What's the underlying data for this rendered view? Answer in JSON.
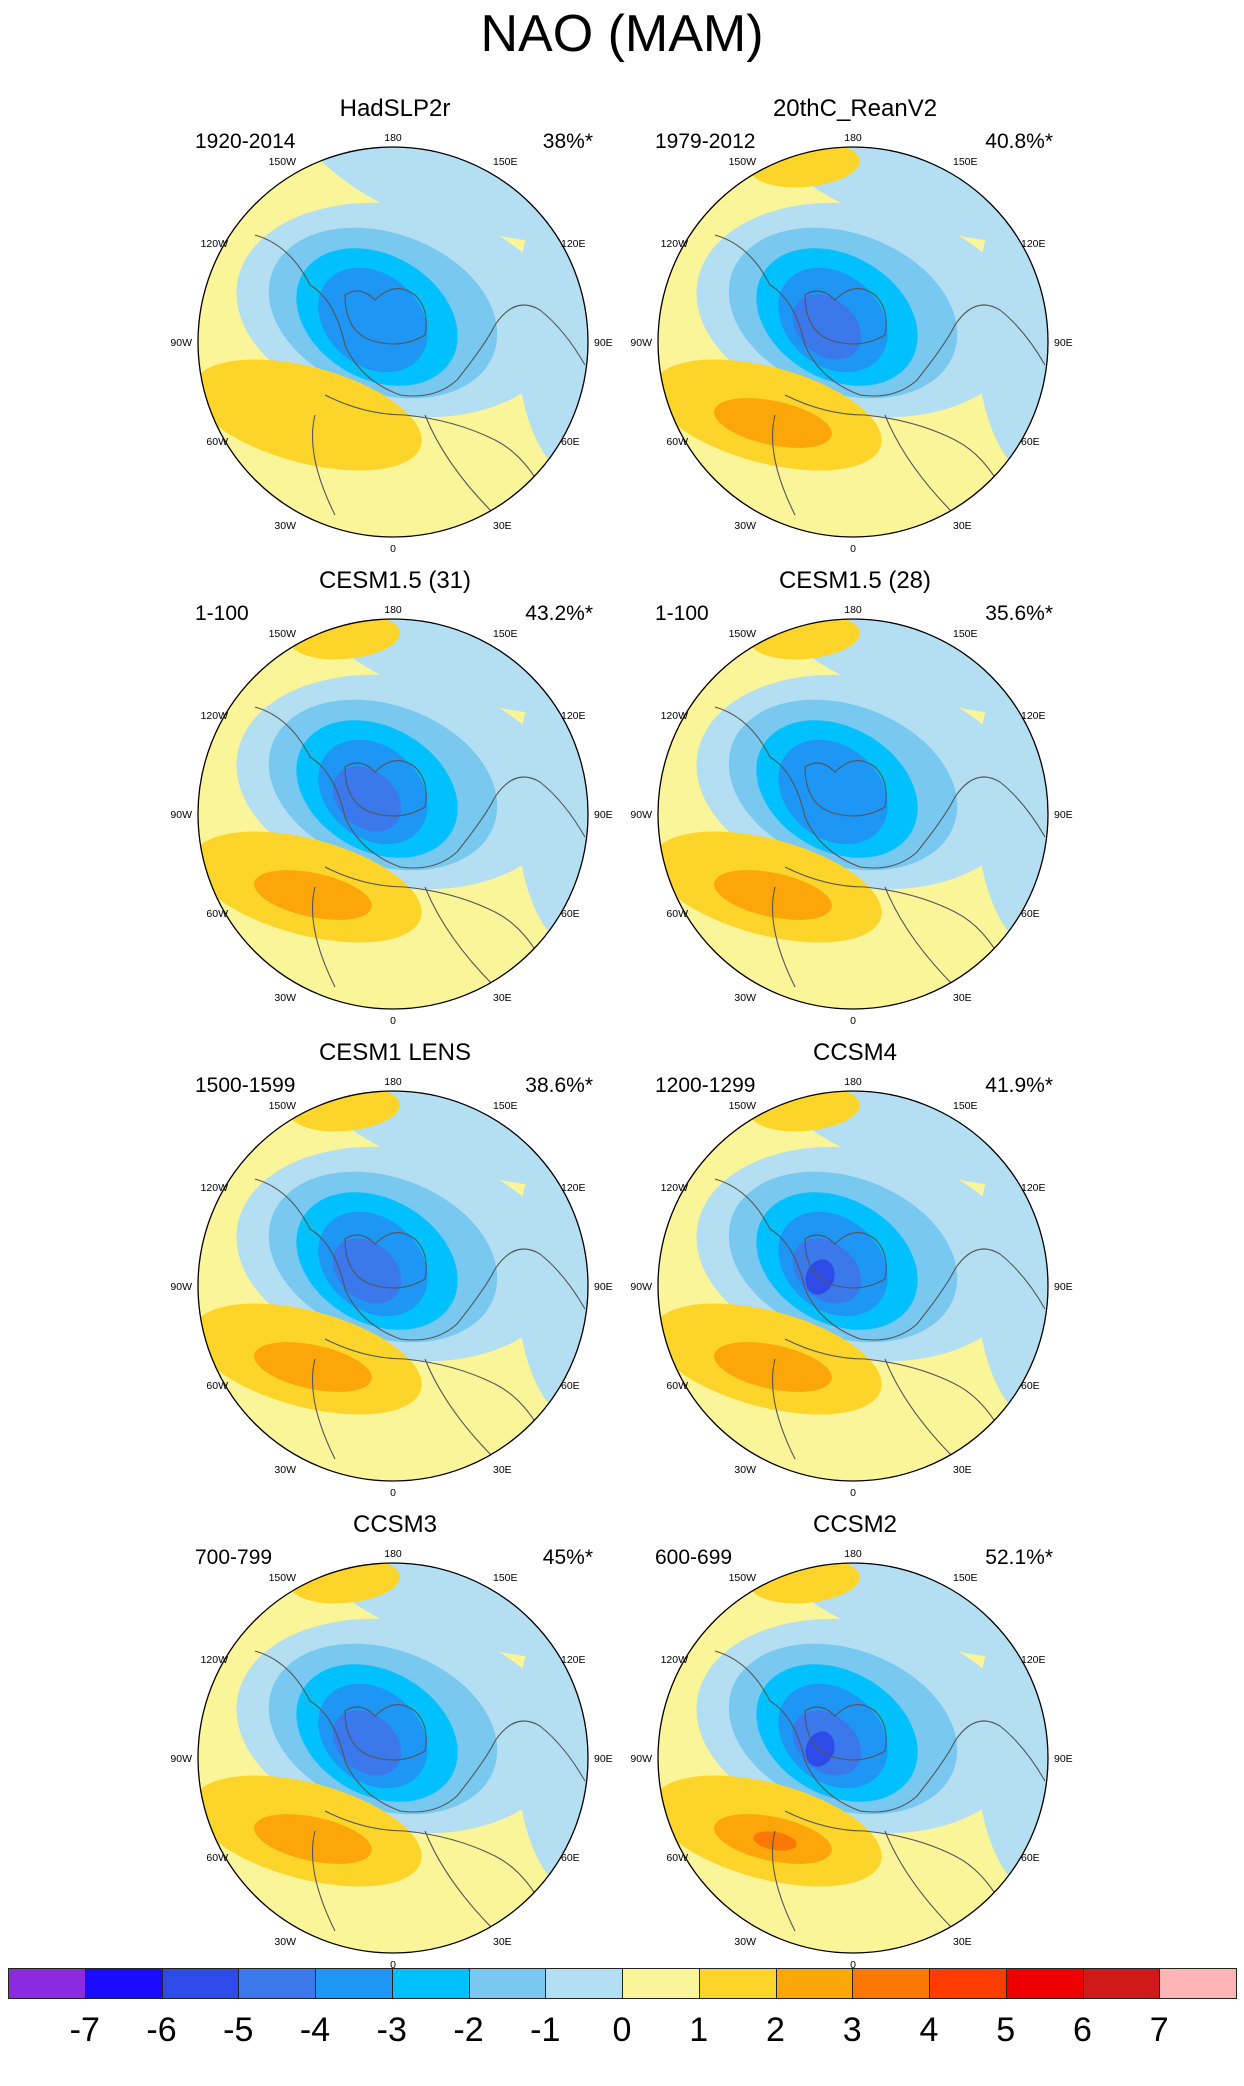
{
  "title": "NAO (MAM)",
  "lon_labels": {
    "top": "180",
    "bottom": "0",
    "left": "90W",
    "right": "90E",
    "ul1": "150W",
    "ul2": "120W",
    "ur1": "150E",
    "ur2": "120E",
    "ll1": "60W",
    "ll2": "30W",
    "lr1": "60E",
    "lr2": "30E"
  },
  "panels": [
    {
      "name": "HadSLP2r",
      "period": "1920-2014",
      "variance": "38%*",
      "max_positive": 2,
      "max_negative": -4
    },
    {
      "name": "20thC_ReanV2",
      "period": "1979-2012",
      "variance": "40.8%*",
      "max_positive": 3,
      "max_negative": -5
    },
    {
      "name": "CESM1.5 (31)",
      "period": "1-100",
      "variance": "43.2%*",
      "max_positive": 3,
      "max_negative": -5
    },
    {
      "name": "CESM1.5 (28)",
      "period": "1-100",
      "variance": "35.6%*",
      "max_positive": 3,
      "max_negative": -4
    },
    {
      "name": "CESM1 LENS",
      "period": "1500-1599",
      "variance": "38.6%*",
      "max_positive": 3,
      "max_negative": -5
    },
    {
      "name": "CCSM4",
      "period": "1200-1299",
      "variance": "41.9%*",
      "max_positive": 3,
      "max_negative": -6
    },
    {
      "name": "CCSM3",
      "period": "700-799",
      "variance": "45%*",
      "max_positive": 3,
      "max_negative": -5
    },
    {
      "name": "CCSM2",
      "period": "600-699",
      "variance": "52.1%*",
      "max_positive": 4,
      "max_negative": -6
    }
  ],
  "colorbar": {
    "ticks": [
      "-7",
      "-6",
      "-5",
      "-4",
      "-3",
      "-2",
      "-1",
      "0",
      "1",
      "2",
      "3",
      "4",
      "5",
      "6",
      "7"
    ],
    "colors": [
      "#8a2be2",
      "#1a0dff",
      "#2e4ae8",
      "#3a78ec",
      "#1e96f5",
      "#00c0ff",
      "#78c8f0",
      "#b4def2",
      "#fbf59a",
      "#fdd52a",
      "#fca60a",
      "#fb7806",
      "#ff3d00",
      "#ee0000",
      "#d01a1a",
      "#ffb5b5"
    ]
  }
}
